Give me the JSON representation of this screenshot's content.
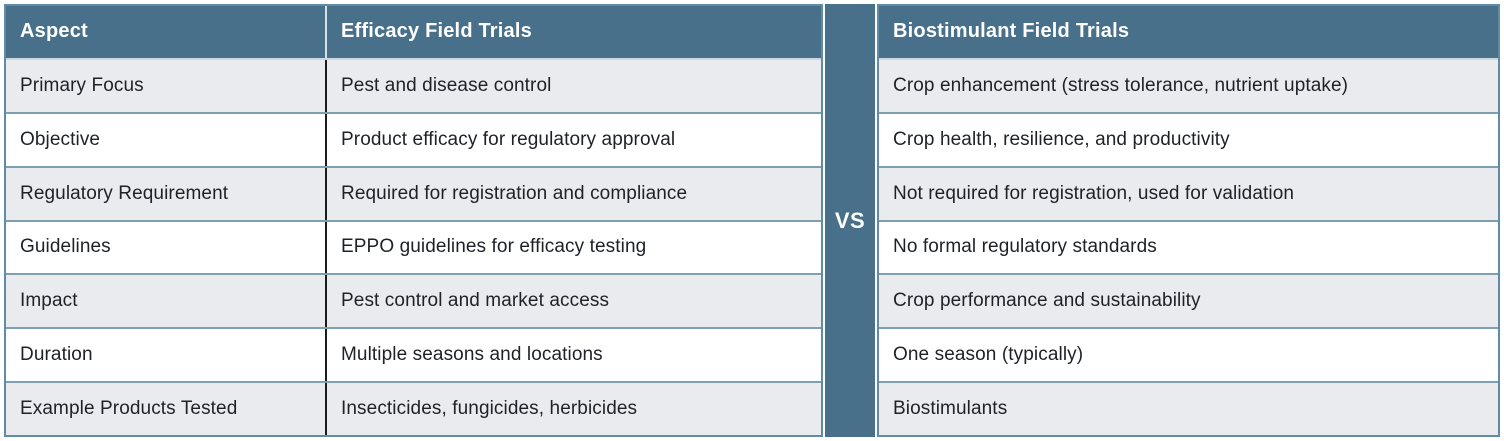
{
  "divider": {
    "label": "VS"
  },
  "colors": {
    "header_bg": "#48708a",
    "vs_strip_bg": "#48708a",
    "row_alt_bg": "#e9ebee",
    "row_bg": "#ffffff",
    "outer_border": "#5f8ca6",
    "row_separator": "#7d9fb2",
    "column_divider": "#1b1b1b",
    "header_text": "#ffffff",
    "body_text": "#1e2226"
  },
  "chart_data": {
    "type": "table",
    "columns": [
      "Aspect",
      "Efficacy Field Trials",
      "Biostimulant Field Trials"
    ],
    "rows": [
      [
        "Primary Focus",
        "Pest and disease control",
        "Crop enhancement (stress tolerance, nutrient uptake)"
      ],
      [
        "Objective",
        "Product efficacy for regulatory approval",
        "Crop health, resilience, and productivity"
      ],
      [
        "Regulatory Requirement",
        "Required for registration and compliance",
        "Not required for registration, used for validation"
      ],
      [
        "Guidelines",
        "EPPO guidelines for efficacy testing",
        "No formal regulatory standards"
      ],
      [
        "Impact",
        "Pest control and market access",
        "Crop performance and sustainability"
      ],
      [
        "Duration",
        "Multiple seasons and locations",
        "One season (typically)"
      ],
      [
        "Example Products Tested",
        "Insecticides, fungicides, herbicides",
        "Biostimulants"
      ]
    ],
    "layout": {
      "divider_label": "VS",
      "alternating_row_shading": true,
      "shaded_rows": [
        0,
        2,
        4,
        6
      ]
    }
  }
}
